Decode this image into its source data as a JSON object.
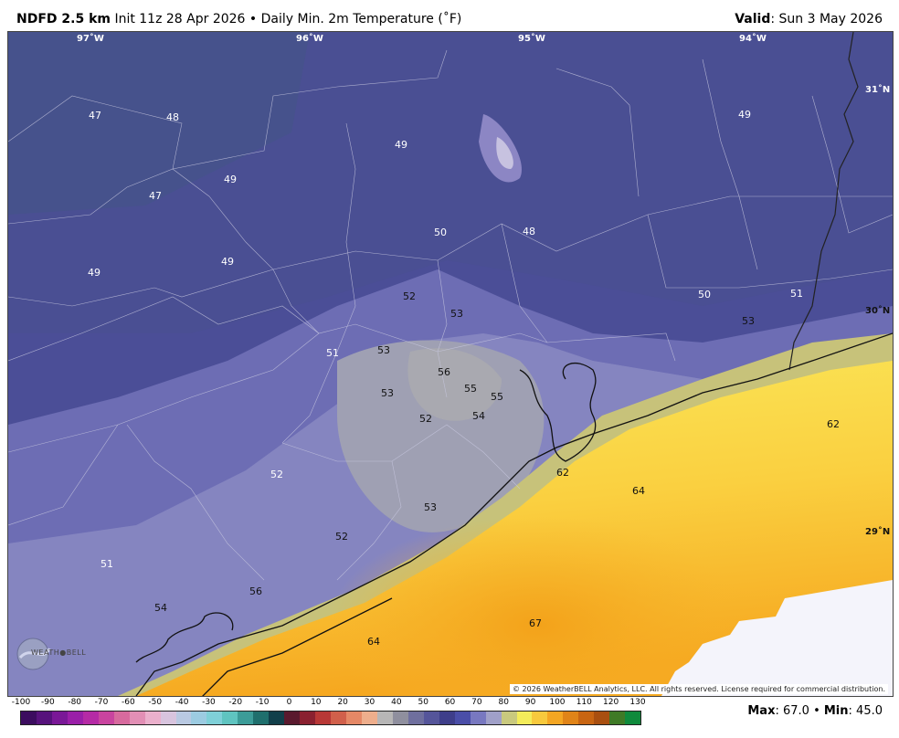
{
  "header": {
    "product": "NDFD 2.5 km",
    "init": "Init 11z 28 Apr 2026",
    "bullet": "•",
    "description": "Daily Min. 2m Temperature (˚F)",
    "valid_label": "Valid",
    "valid_value": ": Sun 3 May 2026"
  },
  "longitudes": [
    "97˚W",
    "96˚W",
    "95˚W",
    "94˚W"
  ],
  "latitudes": [
    "31˚N",
    "30˚N",
    "29˚N"
  ],
  "temperature_labels": [
    "47",
    "48",
    "49",
    "47",
    "49",
    "49",
    "49",
    "50",
    "48",
    "49",
    "52",
    "53",
    "51",
    "53",
    "56",
    "53",
    "55",
    "55",
    "52",
    "54",
    "50",
    "51",
    "53",
    "62",
    "62",
    "64",
    "52",
    "53",
    "52",
    "51",
    "56",
    "54",
    "64",
    "67"
  ],
  "copyright": "© 2026 WeatherBELL Analytics, LLC. All rights reserved. License required for commercial distribution.",
  "logo": {
    "name": "WeatherBELL",
    "text": "WEATH●BELL"
  },
  "legend": {
    "ticks": [
      "-100",
      "-90",
      "-80",
      "-70",
      "-60",
      "-50",
      "-40",
      "-30",
      "-20",
      "-10",
      "0",
      "10",
      "20",
      "30",
      "40",
      "50",
      "60",
      "70",
      "80",
      "90",
      "100",
      "110",
      "120",
      "130"
    ],
    "colors": [
      "#3c0d5f",
      "#57137c",
      "#7a1897",
      "#9a1fa8",
      "#b52aa5",
      "#c9449f",
      "#d76a9e",
      "#e28fb5",
      "#ebb0cc",
      "#d8c4de",
      "#b9c9e2",
      "#9ccbe1",
      "#7fd0d8",
      "#5fc4c0",
      "#3c9c98",
      "#1f6f6d",
      "#113f4a",
      "#5a1a2e",
      "#8a2130",
      "#b83836",
      "#d1604b",
      "#e58866",
      "#eeae8c",
      "#b7b6b6",
      "#8f8f9e",
      "#6f6f9e",
      "#55559a",
      "#3e3e8a",
      "#4a4ea8",
      "#7878c0",
      "#a0a0c8",
      "#c9c97e",
      "#f3ec5a",
      "#f7c93d",
      "#f4a623",
      "#e08418",
      "#c86512",
      "#a94f10",
      "#3f7a26",
      "#0f8a3c"
    ]
  },
  "stats": {
    "max_label": "Max",
    "max_value": ": 67.0",
    "sep": " • ",
    "min_label": "Min",
    "min_value": ": 45.0"
  }
}
